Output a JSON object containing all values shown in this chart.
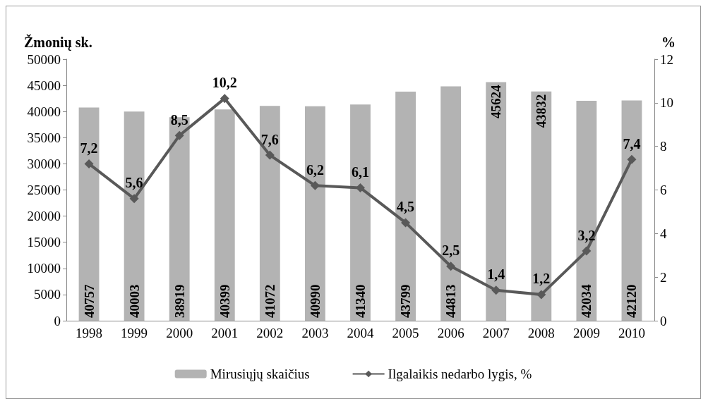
{
  "chart_data": {
    "type": "bar",
    "ylabel": "Žmonių sk.",
    "y2label": "%",
    "categories": [
      "1998",
      "1999",
      "2000",
      "2001",
      "2002",
      "2003",
      "2004",
      "2005",
      "2006",
      "2007",
      "2008",
      "2009",
      "2010"
    ],
    "series": [
      {
        "name": "Mirusiųjų skaičius",
        "color": "#b3b3b3",
        "values": [
          40757,
          40003,
          38919,
          40399,
          41072,
          40990,
          41340,
          43799,
          44813,
          45624,
          43832,
          42034,
          42120
        ],
        "value_labels": [
          "40757",
          "40003",
          "38919",
          "40399",
          "41072",
          "40990",
          "41340",
          "43799",
          "44813",
          "45624",
          "43832",
          "42034",
          "42120"
        ]
      },
      {
        "name": "Ilgalaikis nedarbo lygis, %",
        "type": "line",
        "axis": "y2",
        "color": "#595959",
        "marker": "diamond",
        "values": [
          7.2,
          5.6,
          8.5,
          10.2,
          7.6,
          6.2,
          6.1,
          4.5,
          2.5,
          1.4,
          1.2,
          3.2,
          7.4
        ],
        "value_labels": [
          "7,2",
          "5,6",
          "8,5",
          "10,2",
          "7,6",
          "6,2",
          "6,1",
          "4,5",
          "2,5",
          "1,4",
          "1,2",
          "3,2",
          "7,4"
        ]
      }
    ],
    "ylim": [
      0,
      50000
    ],
    "yticks": [
      0,
      5000,
      10000,
      15000,
      20000,
      25000,
      30000,
      35000,
      40000,
      45000,
      50000
    ],
    "y2lim": [
      0,
      12
    ],
    "y2ticks": [
      0,
      2,
      4,
      6,
      8,
      10,
      12
    ],
    "grid": false,
    "legend": "bottom"
  }
}
